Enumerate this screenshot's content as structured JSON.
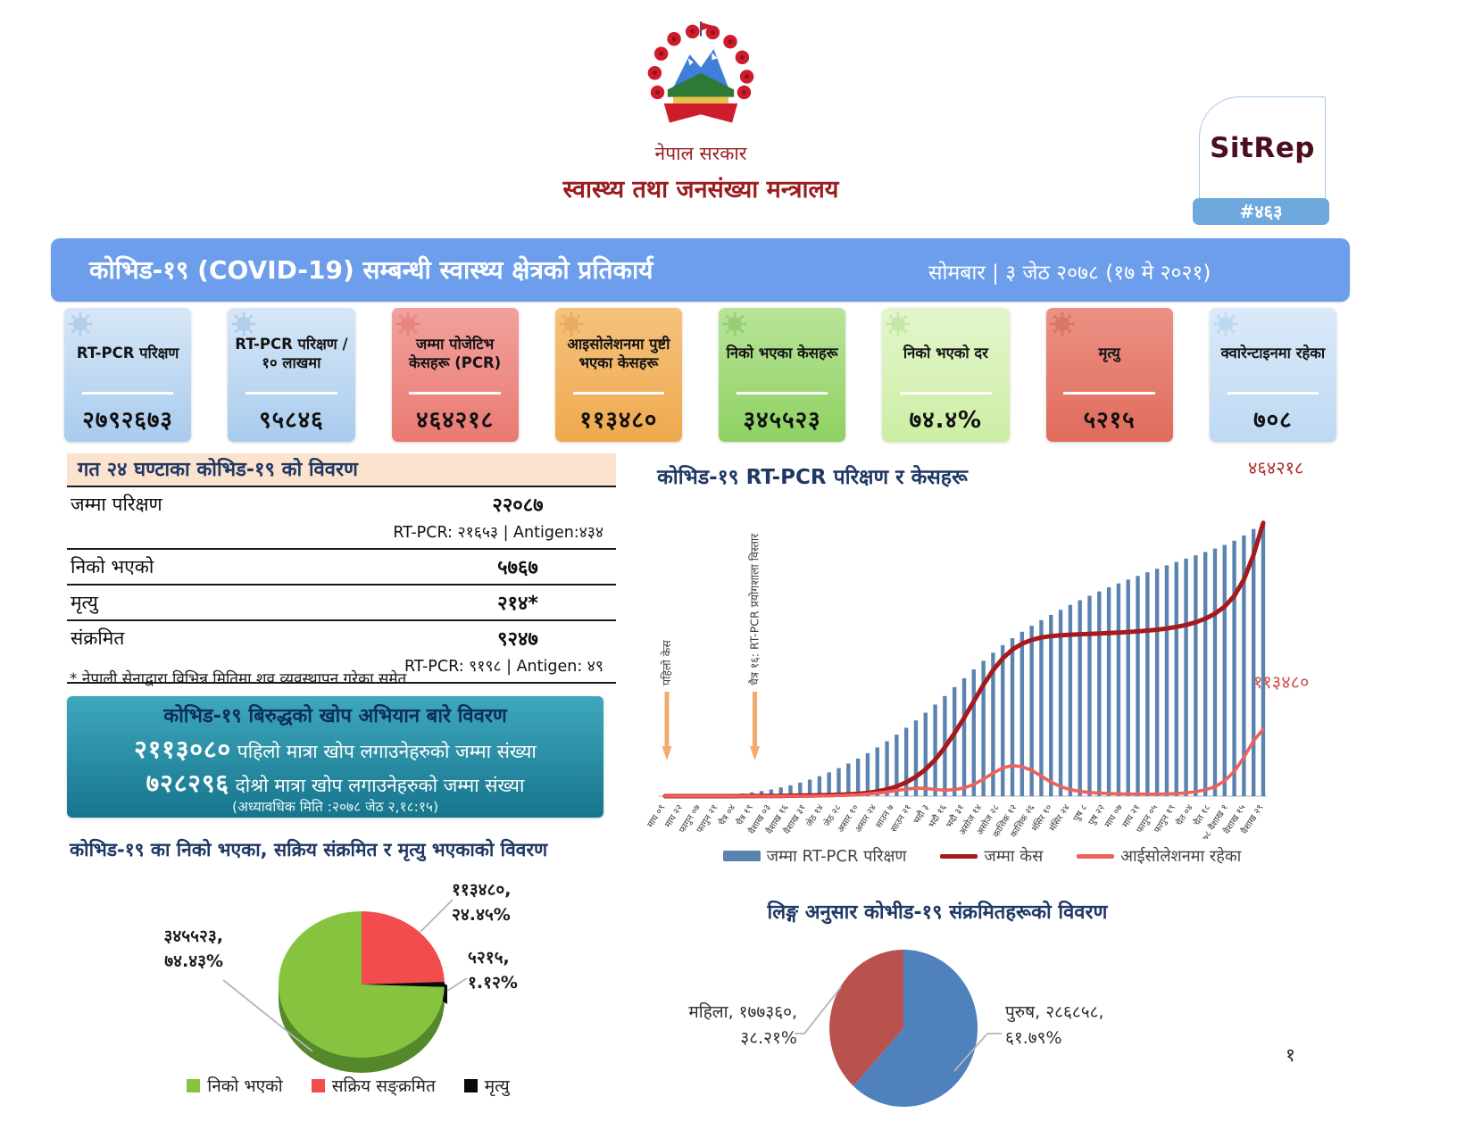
{
  "header": {
    "government": "नेपाल सरकार",
    "ministry": "स्वास्थ्य तथा जनसंख्या मन्त्रालय",
    "sitrep_label": "SitRep",
    "sitrep_number": "#४६३",
    "title": "कोभिड-१९ (COVID-19) सम्बन्धी स्वास्थ्य क्षेत्रको प्रतिकार्य",
    "date": "सोमबार | ३ जेठ २०७८ (१७ मे २०२१)"
  },
  "stat_cards": [
    {
      "label": "RT-PCR परिक्षण",
      "value": "२७९२६७३",
      "color_top": "#d7e7f7",
      "color_bottom": "#a9cbed",
      "icon_color": "#8fb4dc"
    },
    {
      "label": "RT-PCR परिक्षण /१० लाखमा",
      "value": "९५८४६",
      "color_top": "#d7e7f7",
      "color_bottom": "#a9cbed",
      "icon_color": "#8fb4dc"
    },
    {
      "label": "जम्मा पोजेटिभ केसहरू (PCR)",
      "value": "४६४२१८",
      "color_top": "#f2a19c",
      "color_bottom": "#e97a72",
      "icon_color": "#d96a63"
    },
    {
      "label": "आइसोलेशनमा पुष्टी भएका केसहरू",
      "value": "११३४८०",
      "color_top": "#f5c27d",
      "color_bottom": "#efa94e",
      "icon_color": "#dd9440"
    },
    {
      "label": "निको भएका केसहरू",
      "value": "३४५५२३",
      "color_top": "#b9e49a",
      "color_bottom": "#8ed161",
      "icon_color": "#79b84f"
    },
    {
      "label": "निको भएको दर",
      "value": "७४.४%",
      "color_top": "#e4f5cd",
      "color_bottom": "#cceea4",
      "icon_color": "#a8d87f"
    },
    {
      "label": "मृत्यु",
      "value": "५२१५",
      "color_top": "#eb9184",
      "color_bottom": "#e06b5c",
      "icon_color": "#c85a4d"
    },
    {
      "label": "क्वारेन्टाइनमा रहेका",
      "value": "७०८",
      "color_top": "#dbeafa",
      "color_bottom": "#bdd9f2",
      "icon_color": "#a3c6e8"
    }
  ],
  "daily_summary": {
    "title": "गत २४ घण्टाका कोभिड-१९ को विवरण",
    "rows": [
      {
        "label": "जम्मा परिक्षण",
        "value": "२२०८७",
        "sub": "RT-PCR: २१६५३ |  Antigen:४३४"
      },
      {
        "label": "निको भएको",
        "value": "५७६७",
        "sub": ""
      },
      {
        "label": "मृत्यु",
        "value": "२१४*",
        "sub": ""
      },
      {
        "label": "संक्रमित",
        "value": "९२४७",
        "sub": "RT-PCR: ९१९८ |  Antigen:  ४९"
      }
    ],
    "footnote": "* नेपाली सेनाद्वारा विभिन्न मितिमा शव व्यवस्थापन गरेका समेत"
  },
  "vaccination": {
    "title": "कोभिड-१९ बिरुद्धको खोप अभियान बारे विवरण",
    "first_dose_value": "२११३०८०",
    "first_dose_text": " पहिलो मात्रा खोप लगाउनेहरुको जम्मा संख्या",
    "second_dose_value": "७२८२९६",
    "second_dose_text": " दोश्रो मात्रा खोप लगाउनेहरुको जम्मा संख्या",
    "updated": "(अध्यावधिक मिति :२०७८ जेठ २,१८:१५)"
  },
  "page_number": "१",
  "chart_data": [
    {
      "id": "tests-cases-timeline",
      "type": "line",
      "title": "कोभिड-१९  RT-PCR परिक्षण र केसहरू",
      "x_labels": [
        "माघ ०९",
        "माघ २२",
        "फागुन ०७",
        "फागुन २१",
        "चैत्र ०४",
        "चैत्र १९",
        "वैशाख ०३",
        "वैशाख १६",
        "वैशाख ३१",
        "जेठ १४",
        "जेठ २८",
        "असार १०",
        "असार २४",
        "साउन ७",
        "साउन २१",
        "भदौ ३",
        "भदौ १६",
        "भदौ ३१",
        "असोज १४",
        "असोज २८",
        "कात्तिक १२",
        "कात्तिक २६",
        "मंसिर १०",
        "मंसिर २४",
        "पुष ८",
        "पुष २२",
        "माघ ०७",
        "माघ २१",
        "फागुन ०५",
        "फागुन १९",
        "चैत ०४",
        "चैत १८",
        "२०७८ वैशाख १",
        "वैशाख १५",
        "वैशाख २९"
      ],
      "axes": {
        "bars_max": 2800000,
        "lines_max": 470000,
        "grid": false,
        "legend_position": "bottom"
      },
      "series": [
        {
          "name": "जम्मा RT-PCR परिक्षण",
          "type": "bar",
          "color": "#5b83b0",
          "values": [
            500,
            1000,
            2000,
            3500,
            5500,
            8500,
            13000,
            19000,
            27000,
            38000,
            52000,
            68000,
            88000,
            111000,
            138000,
            169000,
            204000,
            243000,
            286000,
            333000,
            384000,
            439000,
            498000,
            561000,
            628000,
            699000,
            774000,
            853000,
            936000,
            1023000,
            1114000,
            1205000,
            1295000,
            1383000,
            1466000,
            1543000,
            1614000,
            1680000,
            1741000,
            1798000,
            1852000,
            1904000,
            1954000,
            2002000,
            2048000,
            2092000,
            2134000,
            2174000,
            2213000,
            2251000,
            2288000,
            2324000,
            2359000,
            2393000,
            2427000,
            2461000,
            2495000,
            2530000,
            2567000,
            2610000,
            2664000,
            2730000,
            2792673
          ]
        },
        {
          "name": "जम्मा केस",
          "type": "line",
          "color": "#a6191d",
          "values": [
            0,
            0,
            0,
            0,
            0,
            0,
            0,
            0,
            100,
            150,
            250,
            350,
            500,
            700,
            900,
            1200,
            1500,
            1900,
            2400,
            3000,
            4000,
            5500,
            8000,
            11500,
            16500,
            23500,
            33000,
            45500,
            62000,
            83000,
            107000,
            133000,
            161000,
            189000,
            214000,
            234000,
            249000,
            259000,
            265500,
            269500,
            271800,
            273200,
            274200,
            275000,
            275700,
            276400,
            277100,
            277900,
            278800,
            279900,
            281200,
            282800,
            284800,
            287400,
            290800,
            295400,
            301600,
            310000,
            322000,
            340000,
            368000,
            410000,
            464218
          ]
        },
        {
          "name": "आईसोलेशनमा रहेका",
          "type": "line",
          "color": "#ef6159",
          "values": [
            0,
            0,
            0,
            0,
            0,
            0,
            0,
            0,
            0,
            0,
            0,
            0,
            0,
            0,
            0,
            0,
            300,
            600,
            1000,
            1600,
            2400,
            3600,
            5200,
            7200,
            9600,
            12000,
            13800,
            13200,
            11400,
            10200,
            11000,
            14000,
            20000,
            29000,
            39000,
            48000,
            52000,
            50000,
            44000,
            34000,
            24000,
            16000,
            11000,
            8000,
            6200,
            5200,
            4500,
            4000,
            3700,
            3500,
            3400,
            3500,
            3800,
            4400,
            5600,
            7600,
            10800,
            16000,
            26000,
            42000,
            66000,
            94000,
            113480
          ]
        }
      ],
      "annotations": [
        {
          "text": "पहिलो केस",
          "tick": 0
        },
        {
          "text": "चैत्र १६: RT-PCR प्रयोगशाला विस्तार",
          "tick": 5
        }
      ],
      "end_labels": [
        {
          "text": "४६४२१८",
          "color": "#b22822"
        },
        {
          "text": "११३४८०",
          "color": "#d24f47"
        }
      ]
    },
    {
      "id": "outcome-pie",
      "type": "pie",
      "title": "कोभिड-१९ का निको भएका, सक्रिय संक्रमित र मृत्यु भएकाको विवरण",
      "slices": [
        {
          "label": "सक्रिय सङ्क्रमित",
          "value": 113480,
          "value_text": "११३४८०",
          "pct": "२४.४५%",
          "color": "#f24c4c"
        },
        {
          "label": "मृत्यु",
          "value": 5215,
          "value_text": "५२१५",
          "pct": "१.१२%",
          "color": "#0a0a0a"
        },
        {
          "label": "निको भएको",
          "value": 345523,
          "value_text": "३४५५२३",
          "pct": "७४.४३%",
          "color": "#86c440"
        }
      ],
      "legend": [
        {
          "label": "निको भएको",
          "color": "#86c440"
        },
        {
          "label": "सक्रिय सङ्क्रमित",
          "color": "#f24c4c"
        },
        {
          "label": "मृत्यु",
          "color": "#0a0a0a"
        }
      ]
    },
    {
      "id": "gender-pie",
      "type": "pie",
      "title": "लिङ्ग अनुसार कोभीड-१९ संक्रमितहरूको विवरण",
      "slices": [
        {
          "label": "पुरुष",
          "value": 286858,
          "value_text": "२८६८५८",
          "pct": "६१.७९%",
          "color": "#4f81bd"
        },
        {
          "label": "महिला",
          "value": 177360,
          "value_text": "१७७३६०",
          "pct": "३८.२१%",
          "color": "#b9514e"
        }
      ]
    }
  ]
}
